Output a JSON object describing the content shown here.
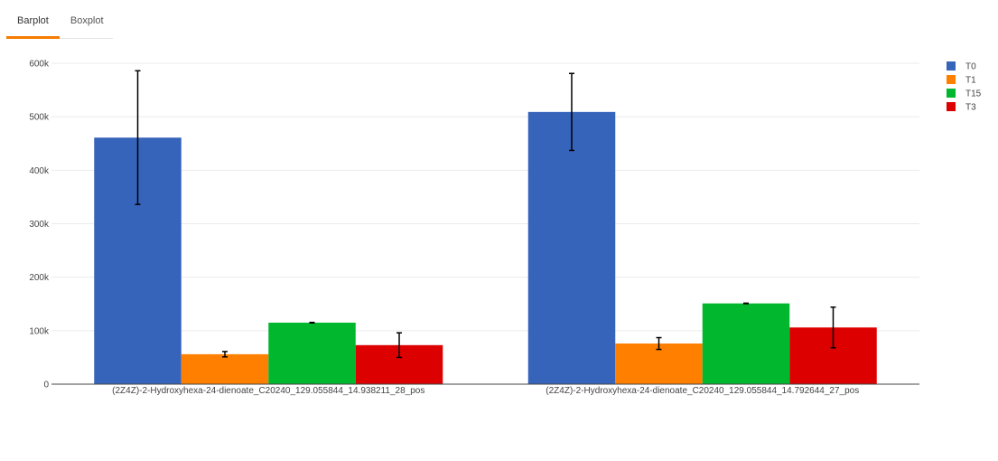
{
  "tabs": [
    {
      "label": "Barplot",
      "active": true
    },
    {
      "label": "Boxplot",
      "active": false
    }
  ],
  "colors": {
    "accent": "#f57c00"
  },
  "chart_data": {
    "type": "bar",
    "categories": [
      "(2Z4Z)-2-Hydroxyhexa-24-dienoate_C20240_129.055844_14.938211_28_pos",
      "(2Z4Z)-2-Hydroxyhexa-24-dienoate_C20240_129.055844_14.792644_27_pos"
    ],
    "series": [
      {
        "name": "T0",
        "color": "#3764bb",
        "values": [
          461000,
          509000
        ],
        "errors": [
          125000,
          72000
        ]
      },
      {
        "name": "T1",
        "color": "#ff7f00",
        "values": [
          56000,
          76000
        ],
        "errors": [
          5000,
          11000
        ]
      },
      {
        "name": "T15",
        "color": "#00b72e",
        "values": [
          115000,
          151000
        ],
        "errors": [
          500,
          500
        ]
      },
      {
        "name": "T3",
        "color": "#dd0000",
        "values": [
          73000,
          106000
        ],
        "errors": [
          23000,
          38000
        ]
      }
    ],
    "ylim": [
      0,
      600000
    ],
    "yticks": [
      0,
      100000,
      200000,
      300000,
      400000,
      500000,
      600000
    ],
    "ytick_labels": [
      "0",
      "100k",
      "200k",
      "300k",
      "400k",
      "500k",
      "600k"
    ],
    "grid": true,
    "legend_position": "top-right",
    "error_bars": true
  }
}
